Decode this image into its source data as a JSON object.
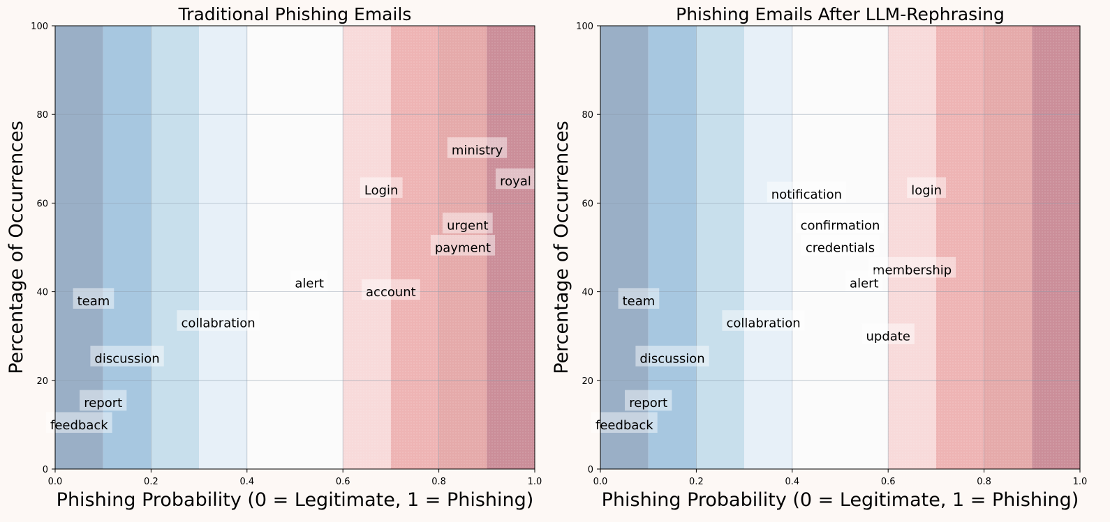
{
  "chart_data": [
    {
      "type": "scatter",
      "title": "Traditional Phishing Emails",
      "xlabel": "Phishing Probability (0 = Legitimate, 1 = Phishing)",
      "ylabel": "Percentage of Occurrences",
      "xlim": [
        0,
        1
      ],
      "ylim": [
        0,
        100
      ],
      "xticks": [
        "0.0",
        "0.2",
        "0.4",
        "0.6",
        "0.8",
        "1.0"
      ],
      "yticks": [
        "0",
        "20",
        "40",
        "60",
        "80",
        "100"
      ],
      "grid": true,
      "background_bands": [
        "#9aafc6",
        "#a7c7e0",
        "#c8dfec",
        "#e7f0f8",
        "#fbfbfb",
        "#fbfbfb",
        "#f8dada",
        "#eeb4b4",
        "#e5aaaa",
        "#cb8e99"
      ],
      "points": [
        {
          "word": "ministry",
          "x": 0.88,
          "y": 72
        },
        {
          "word": "royal",
          "x": 0.96,
          "y": 65
        },
        {
          "word": "Login",
          "x": 0.68,
          "y": 63
        },
        {
          "word": "urgent",
          "x": 0.86,
          "y": 55
        },
        {
          "word": "payment",
          "x": 0.85,
          "y": 50
        },
        {
          "word": "alert",
          "x": 0.53,
          "y": 42
        },
        {
          "word": "account",
          "x": 0.7,
          "y": 40
        },
        {
          "word": "team",
          "x": 0.08,
          "y": 38
        },
        {
          "word": "collabration",
          "x": 0.34,
          "y": 33
        },
        {
          "word": "discussion",
          "x": 0.15,
          "y": 25
        },
        {
          "word": "report",
          "x": 0.1,
          "y": 15
        },
        {
          "word": "feedback",
          "x": 0.05,
          "y": 10
        }
      ]
    },
    {
      "type": "scatter",
      "title": "Phishing Emails After LLM-Rephrasing",
      "xlabel": "Phishing Probability (0 = Legitimate, 1 = Phishing)",
      "ylabel": "Percentage of Occurrences",
      "xlim": [
        0,
        1
      ],
      "ylim": [
        0,
        100
      ],
      "xticks": [
        "0.0",
        "0.2",
        "0.4",
        "0.6",
        "0.8",
        "1.0"
      ],
      "yticks": [
        "0",
        "20",
        "40",
        "60",
        "80",
        "100"
      ],
      "grid": true,
      "background_bands": [
        "#9aafc6",
        "#a7c7e0",
        "#c8dfec",
        "#e7f0f8",
        "#fbfbfb",
        "#fbfbfb",
        "#f8dada",
        "#eeb4b4",
        "#e5aaaa",
        "#cb8e99"
      ],
      "points": [
        {
          "word": "notification",
          "x": 0.43,
          "y": 62
        },
        {
          "word": "login",
          "x": 0.68,
          "y": 63
        },
        {
          "word": "confirmation",
          "x": 0.5,
          "y": 55
        },
        {
          "word": "credentials",
          "x": 0.5,
          "y": 50
        },
        {
          "word": "membership",
          "x": 0.65,
          "y": 45
        },
        {
          "word": "alert",
          "x": 0.55,
          "y": 42
        },
        {
          "word": "team",
          "x": 0.08,
          "y": 38
        },
        {
          "word": "collabration",
          "x": 0.34,
          "y": 33
        },
        {
          "word": "update",
          "x": 0.6,
          "y": 30
        },
        {
          "word": "discussion",
          "x": 0.15,
          "y": 25
        },
        {
          "word": "report",
          "x": 0.1,
          "y": 15
        },
        {
          "word": "feedback",
          "x": 0.05,
          "y": 10
        }
      ]
    }
  ]
}
